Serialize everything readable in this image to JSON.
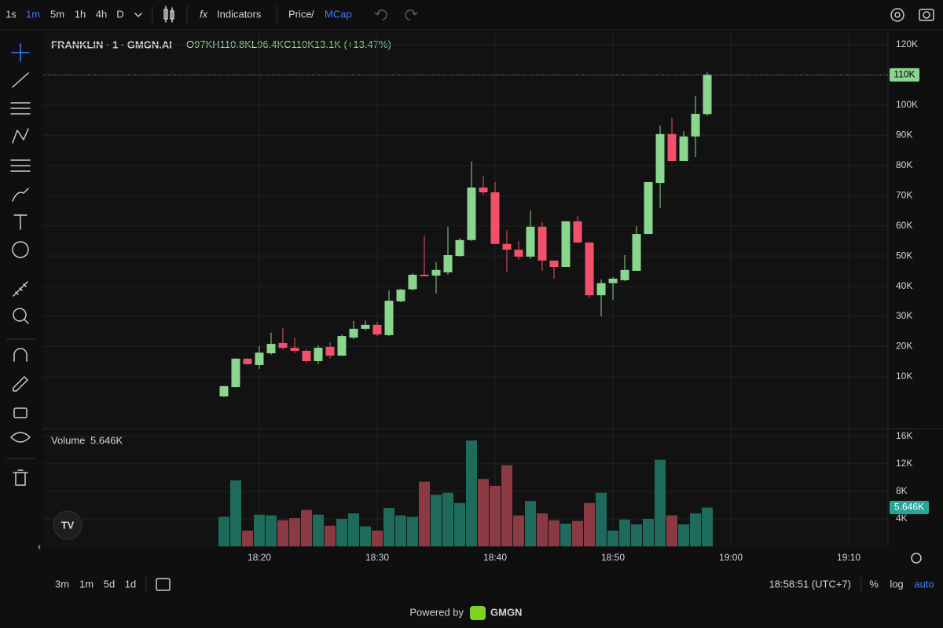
{
  "toolbar": {
    "intervals": [
      "1s",
      "1m",
      "5m",
      "1h",
      "4h",
      "D"
    ],
    "indicators": "Indicators",
    "price": "Price",
    "separator": "/",
    "mcap": "MCap"
  },
  "chart_data": [
    {
      "type": "candlestick",
      "title": "FRANKLIN · 1 · GMGN.AI",
      "legend": [
        {
          "key": "O",
          "value": "97K"
        },
        {
          "key": "H",
          "value": "110.8K"
        },
        {
          "key": "L",
          "value": "96.4K"
        },
        {
          "key": "C",
          "value": "110K"
        }
      ],
      "change": "13.1K (+13.47%)",
      "x": [
        17,
        18,
        19,
        20,
        21,
        22,
        23,
        24,
        25,
        26,
        27,
        28,
        29,
        30,
        31,
        32,
        33,
        34,
        35,
        36,
        37,
        38,
        39,
        40,
        41,
        42,
        43,
        44,
        45,
        46,
        47,
        48,
        49,
        50,
        51,
        52,
        53,
        54,
        55,
        56,
        57,
        58
      ],
      "open": [
        3.5,
        6.6,
        16.0,
        13.9,
        17.8,
        21.2,
        19.6,
        18.6,
        15.2,
        19.9,
        17.0,
        23.0,
        25.9,
        27.2,
        23.8,
        35.0,
        39.0,
        43.8,
        43.5,
        44.6,
        50.0,
        55.3,
        72.7,
        71.1,
        54.0,
        52.1,
        49.8,
        59.7,
        48.5,
        46.4,
        61.5,
        54.5,
        37.0,
        41.0,
        42.0,
        45.1,
        57.3,
        74.2,
        90.4,
        81.5,
        89.6,
        97.0
      ],
      "high": [
        7.0,
        16.2,
        16.2,
        20.1,
        24.6,
        26.1,
        23.0,
        19.1,
        20.4,
        21.4,
        24.0,
        28.5,
        28.7,
        28.2,
        38.6,
        39.1,
        44.3,
        56.8,
        48.0,
        59.7,
        56.0,
        81.3,
        76.6,
        74.5,
        58.6,
        55.0,
        65.1,
        61.2,
        48.5,
        61.5,
        63.3,
        54.5,
        42.3,
        43.0,
        50.3,
        59.9,
        74.5,
        93.2,
        95.8,
        91.4,
        103.1,
        110.8
      ],
      "low": [
        3.3,
        6.5,
        14.0,
        12.6,
        17.3,
        19.1,
        17.8,
        14.7,
        14.2,
        16.0,
        17.0,
        22.5,
        25.3,
        23.5,
        23.5,
        34.7,
        38.6,
        43.3,
        37.6,
        43.8,
        49.8,
        55.0,
        70.3,
        54.0,
        44.8,
        48.8,
        49.0,
        45.1,
        42.5,
        46.4,
        54.2,
        36.0,
        30.0,
        35.5,
        41.7,
        45.1,
        57.3,
        65.9,
        81.5,
        81.5,
        82.8,
        96.4
      ],
      "close": [
        6.9,
        16.0,
        14.2,
        18.0,
        20.9,
        19.6,
        18.6,
        15.2,
        19.6,
        17.0,
        23.5,
        25.9,
        27.2,
        24.0,
        35.2,
        38.9,
        43.8,
        43.3,
        45.4,
        50.3,
        55.3,
        72.7,
        71.1,
        54.0,
        52.1,
        49.8,
        59.7,
        48.5,
        46.4,
        61.5,
        54.5,
        37.0,
        41.0,
        42.5,
        45.4,
        57.3,
        74.5,
        90.4,
        81.5,
        89.6,
        97.1,
        110.0
      ],
      "up_color": "#8bd68f",
      "down_color": "#f2506b",
      "xlim": [
        1.67,
        73.33
      ],
      "xticks": [
        {
          "value": 20,
          "label": "18:20"
        },
        {
          "value": 30,
          "label": "18:30"
        },
        {
          "value": 40,
          "label": "18:40"
        },
        {
          "value": 50,
          "label": "18:50"
        },
        {
          "value": 60,
          "label": "19:00"
        },
        {
          "value": 70,
          "label": "19:10"
        }
      ],
      "ylim": [
        -6.9,
        124.4
      ],
      "yticks": [
        {
          "value": 10,
          "label": "10K"
        },
        {
          "value": 20,
          "label": "20K"
        },
        {
          "value": 30,
          "label": "30K"
        },
        {
          "value": 40,
          "label": "40K"
        },
        {
          "value": 50,
          "label": "50K"
        },
        {
          "value": 60,
          "label": "60K"
        },
        {
          "value": 70,
          "label": "70K"
        },
        {
          "value": 80,
          "label": "80K"
        },
        {
          "value": 90,
          "label": "90K"
        },
        {
          "value": 100,
          "label": "100K"
        },
        {
          "value": 110,
          "label": "110K"
        },
        {
          "value": 120,
          "label": "120K"
        }
      ],
      "last_price": {
        "value": 110,
        "label": "110K"
      },
      "grid": true
    },
    {
      "type": "volume",
      "title": "Volume",
      "last_label": "5.646K",
      "values": [
        4.3,
        9.6,
        2.3,
        4.6,
        4.5,
        3.8,
        4.1,
        5.3,
        4.6,
        3.0,
        4.0,
        4.8,
        2.9,
        2.3,
        5.6,
        4.5,
        4.3,
        9.4,
        7.5,
        7.8,
        6.3,
        15.4,
        9.8,
        8.8,
        11.8,
        4.5,
        6.6,
        4.8,
        3.8,
        3.3,
        3.7,
        6.3,
        7.8,
        2.3,
        3.9,
        3.2,
        4.0,
        12.6,
        4.5,
        3.2,
        4.8,
        5.646
      ],
      "up_color": "#1e6b5c",
      "down_color": "#8b3a43",
      "ylim": [
        0,
        16.9
      ],
      "yticks": [
        {
          "value": 4,
          "label": "4K"
        },
        {
          "value": 8,
          "label": "8K"
        },
        {
          "value": 12,
          "label": "12K"
        },
        {
          "value": 16,
          "label": "16K"
        }
      ],
      "grid": true
    }
  ],
  "footer": {
    "ranges": [
      "3m",
      "1m",
      "5d",
      "1d"
    ],
    "clock": "18:58:51 (UTC+7)",
    "percent": "%",
    "log": "log",
    "auto": "auto",
    "powered_by": "Powered by",
    "brand": "GMGN"
  }
}
